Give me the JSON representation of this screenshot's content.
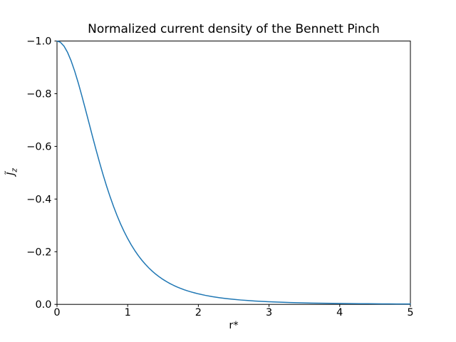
{
  "chart_data": {
    "type": "line",
    "title": "Normalized current density of the Bennett Pinch",
    "xlabel": "r*",
    "ylabel": "J̃z",
    "ylabel_base": "J̃",
    "ylabel_sub": "z",
    "xlim": [
      0,
      5
    ],
    "ylim_top": -1.0,
    "ylim_bottom": 0.0,
    "y_axis_inverted": true,
    "grid": false,
    "legend": "none",
    "background": "#ffffff",
    "axis_color": "#000000",
    "line_color": "#1f77b4",
    "line_width": 1.5,
    "x_ticks": {
      "values": [
        0,
        1,
        2,
        3,
        4,
        5
      ],
      "labels": [
        "0",
        "1",
        "2",
        "3",
        "4",
        "5"
      ]
    },
    "y_ticks": {
      "values": [
        -1.0,
        -0.8,
        -0.6,
        -0.4,
        -0.2,
        0.0
      ],
      "labels": [
        "−1.0",
        "−0.8",
        "−0.6",
        "−0.4",
        "−0.2",
        "0.0"
      ]
    },
    "series": [
      {
        "points": [
          [
            0.0,
            -1.0
          ],
          [
            0.05,
            -0.995
          ],
          [
            0.1,
            -0.9803
          ],
          [
            0.15,
            -0.9565
          ],
          [
            0.2,
            -0.9246
          ],
          [
            0.25,
            -0.8858
          ],
          [
            0.3,
            -0.8417
          ],
          [
            0.35,
            -0.7936
          ],
          [
            0.4,
            -0.7432
          ],
          [
            0.45,
            -0.6916
          ],
          [
            0.5,
            -0.64
          ],
          [
            0.55,
            -0.5894
          ],
          [
            0.6,
            -0.5407
          ],
          [
            0.65,
            -0.4942
          ],
          [
            0.7,
            -0.4504
          ],
          [
            0.75,
            -0.4096
          ],
          [
            0.8,
            -0.3718
          ],
          [
            0.85,
            -0.337
          ],
          [
            0.9,
            -0.3052
          ],
          [
            0.95,
            -0.2763
          ],
          [
            1.0,
            -0.25
          ],
          [
            1.05,
            -0.2262
          ],
          [
            1.1,
            -0.2047
          ],
          [
            1.15,
            -0.1854
          ],
          [
            1.2,
            -0.168
          ],
          [
            1.25,
            -0.1523
          ],
          [
            1.3,
            -0.1382
          ],
          [
            1.35,
            -0.1255
          ],
          [
            1.4,
            -0.1141
          ],
          [
            1.45,
            -0.1039
          ],
          [
            1.5,
            -0.0947
          ],
          [
            1.55,
            -0.0864
          ],
          [
            1.6,
            -0.0789
          ],
          [
            1.65,
            -0.0722
          ],
          [
            1.7,
            -0.0661
          ],
          [
            1.75,
            -0.0606
          ],
          [
            1.8,
            -0.0556
          ],
          [
            1.85,
            -0.0511
          ],
          [
            1.9,
            -0.0471
          ],
          [
            1.95,
            -0.0434
          ],
          [
            2.0,
            -0.04
          ],
          [
            2.1,
            -0.0342
          ],
          [
            2.2,
            -0.0293
          ],
          [
            2.3,
            -0.0253
          ],
          [
            2.4,
            -0.0219
          ],
          [
            2.5,
            -0.019
          ],
          [
            2.6,
            -0.0166
          ],
          [
            2.7,
            -0.0146
          ],
          [
            2.8,
            -0.0128
          ],
          [
            2.9,
            -0.0113
          ],
          [
            3.0,
            -0.01
          ],
          [
            3.1,
            -0.0089
          ],
          [
            3.2,
            -0.0079
          ],
          [
            3.3,
            -0.0071
          ],
          [
            3.4,
            -0.0063
          ],
          [
            3.5,
            -0.0057
          ],
          [
            3.6,
            -0.0051
          ],
          [
            3.7,
            -0.0046
          ],
          [
            3.8,
            -0.0042
          ],
          [
            3.9,
            -0.0038
          ],
          [
            4.0,
            -0.0035
          ],
          [
            4.1,
            -0.0032
          ],
          [
            4.2,
            -0.0029
          ],
          [
            4.3,
            -0.0026
          ],
          [
            4.4,
            -0.0024
          ],
          [
            4.5,
            -0.0022
          ],
          [
            4.6,
            -0.002
          ],
          [
            4.7,
            -0.0019
          ],
          [
            4.8,
            -0.0017
          ],
          [
            4.9,
            -0.0016
          ],
          [
            5.0,
            -0.0015
          ]
        ]
      }
    ]
  }
}
